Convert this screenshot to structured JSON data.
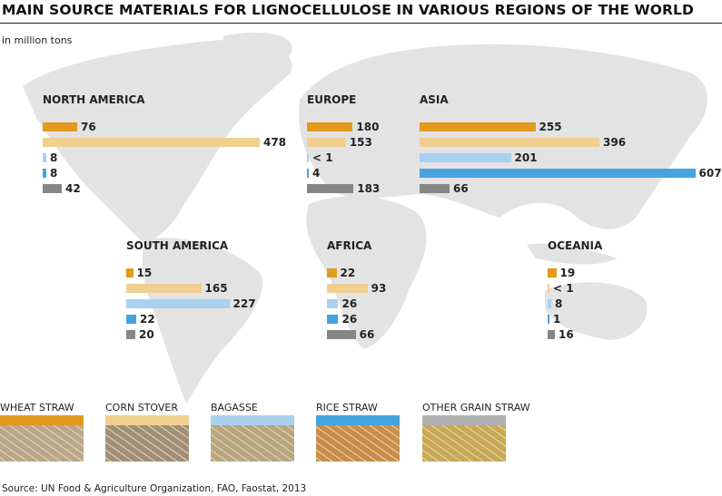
{
  "title": "MAIN SOURCE MATERIALS FOR LIGNOCELLULOSE IN VARIOUS REGIONS OF THE WORLD",
  "unit": "in million tons",
  "source": "Source: UN Food & Agriculture Organization, FAO, Faostat, 2013",
  "chart_data": {
    "type": "bar",
    "orientation": "horizontal",
    "background": "world map",
    "unit": "in million tons",
    "categories": [
      "NORTH AMERICA",
      "EUROPE",
      "ASIA",
      "SOUTH AMERICA",
      "AFRICA",
      "OCEANIA"
    ],
    "series": [
      {
        "name": "WHEAT STRAW",
        "color": "#e19a1e",
        "values": [
          76,
          180,
          255,
          15,
          22,
          19
        ],
        "labels": [
          "76",
          "180",
          "255",
          "15",
          "22",
          "19"
        ]
      },
      {
        "name": "CORN STOVER",
        "color": "#f0cf90",
        "values": [
          478,
          153,
          396,
          165,
          93,
          0.5
        ],
        "labels": [
          "478",
          "153",
          "396",
          "165",
          "93",
          "< 1"
        ]
      },
      {
        "name": "BAGASSE",
        "color": "#a8d1f0",
        "values": [
          8,
          0.5,
          201,
          227,
          26,
          8
        ],
        "labels": [
          "8",
          "< 1",
          "201",
          "227",
          "26",
          "8"
        ]
      },
      {
        "name": "RICE STRAW",
        "color": "#45a3de",
        "values": [
          8,
          4,
          607,
          22,
          26,
          1
        ],
        "labels": [
          "8",
          "4",
          "607",
          "22",
          "26",
          "1"
        ]
      },
      {
        "name": "OTHER GRAIN STRAW",
        "color": "#868686",
        "values": [
          42,
          183,
          66,
          20,
          66,
          16
        ],
        "labels": [
          "42",
          "183",
          "66",
          "20",
          "66",
          "16"
        ]
      }
    ]
  },
  "legend_pictures": [
    "#b9a78c",
    "#a08f78",
    "#b8a680",
    "#c98c4a",
    "#c9a856"
  ],
  "legend_swatch_other": "#b0b0b0"
}
